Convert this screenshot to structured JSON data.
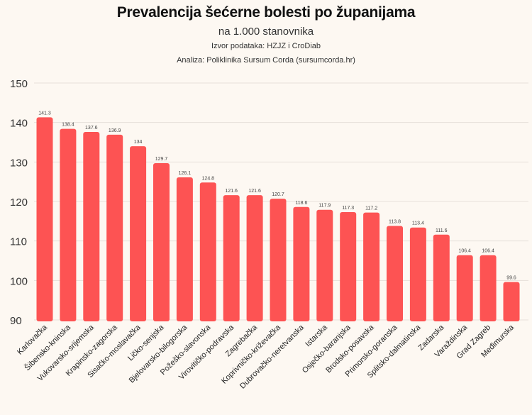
{
  "chart_data": {
    "type": "bar",
    "title": "Prevalencija šećerne bolesti po županijama",
    "subtitle": "na 1.000 stanovnika",
    "source": "Izvor podataka: HZJZ i CroDiab",
    "analysis": "Analiza: Poliklinika Sursum Corda (sursumcorda.hr)",
    "categories": [
      "Karlovačka",
      "Šibensko-kninska",
      "Vukovarsko-srijemska",
      "Krapinsko-zagorska",
      "Sisačko-moslavačka",
      "Ličko-senjska",
      "Bjelovarsko-bilogorska",
      "Požeško-slavonska",
      "Virovitičko-podravska",
      "Zagrebačka",
      "Koprivničko-križevačka",
      "Dubrovačko-neretvanska",
      "Istarska",
      "Osječko-baranjska",
      "Brodsko-posavska",
      "Primorsko-goranska",
      "Splitsko-dalmatinska",
      "Zadarska",
      "Varaždinska",
      "Grad Zagreb",
      "Međimurska"
    ],
    "values": [
      141.3,
      138.4,
      137.6,
      136.9,
      134,
      129.7,
      126.1,
      124.8,
      121.6,
      121.6,
      120.7,
      118.6,
      117.9,
      117.3,
      117.2,
      113.8,
      113.4,
      111.6,
      106.4,
      106.4,
      99.6
    ],
    "ylim": [
      90,
      150
    ],
    "yticks": [
      90,
      100,
      110,
      120,
      130,
      140,
      150
    ],
    "grid": true,
    "bar_color": "#fd5353"
  }
}
